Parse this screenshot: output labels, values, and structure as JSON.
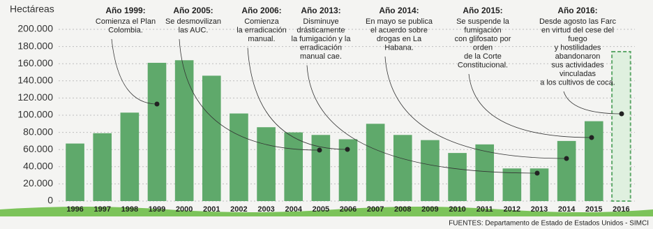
{
  "chart_data": {
    "type": "bar",
    "y_label": "Hectáreas",
    "categories": [
      "1996",
      "1997",
      "1998",
      "1999",
      "2000",
      "2001",
      "2002",
      "2003",
      "2004",
      "2005",
      "2006",
      "2007",
      "2008",
      "2009",
      "2010",
      "2011",
      "2012",
      "2013",
      "2014",
      "2015",
      "2016"
    ],
    "values": [
      67000,
      79000,
      103000,
      161000,
      164000,
      146000,
      102000,
      86000,
      80000,
      77000,
      72000,
      90000,
      77000,
      71000,
      56000,
      66000,
      38000,
      38000,
      70000,
      93000,
      174000
    ],
    "color": "#5fa96b",
    "dashed_last": true,
    "grid": true,
    "ylim": [
      0,
      200000
    ],
    "yticks": [
      0,
      {
        "value": 20000,
        "label": "20.000"
      },
      {
        "value": 40000,
        "label": "40.000"
      },
      {
        "value": 60000,
        "label": "60.000"
      },
      {
        "value": 80000,
        "label": "80.000"
      },
      {
        "value": 100000,
        "label": "100.000"
      },
      {
        "value": 120000,
        "label": "120.000"
      },
      {
        "value": 140000,
        "label": "140.000"
      },
      {
        "value": 160000,
        "label": "160.000"
      },
      {
        "value": 180000,
        "label": "180.000"
      },
      {
        "value": 200000,
        "label": "200.000"
      }
    ],
    "annotations": [
      {
        "title": "Año 1999:",
        "lines": [
          "Comienza el Plan",
          "Colombia."
        ]
      },
      {
        "title": "Año 2005:",
        "lines": [
          "Se desmovilizan",
          "las AUC."
        ]
      },
      {
        "title": "Año 2006:",
        "lines": [
          "Comienza",
          "la erradicación",
          "manual."
        ]
      },
      {
        "title": "Año 2013:",
        "lines": [
          "Disminuye",
          "drásticamente",
          "la fumigación y la",
          "erradicación",
          "manual cae."
        ]
      },
      {
        "title": "Año 2014:",
        "lines": [
          "En mayo se publica",
          "el acuerdo sobre",
          "drogas en La",
          "Habana."
        ]
      },
      {
        "title": "Año 2015:",
        "lines": [
          "Se suspende la",
          "fumigación",
          "con glifosato por",
          "orden",
          "de la Corte",
          "Constitucional."
        ]
      },
      {
        "title": "Año 2016:",
        "lines": [
          "Desde agosto las Farc",
          "en virtud del cese del",
          "fuego",
          "y hostilidades",
          "abandonaron",
          "sus actividades",
          "vinculadas",
          "a los cultivos de coca."
        ]
      }
    ],
    "source": "FUENTES:  Departamento de Estado de Estados Unidos - SIMCI"
  }
}
